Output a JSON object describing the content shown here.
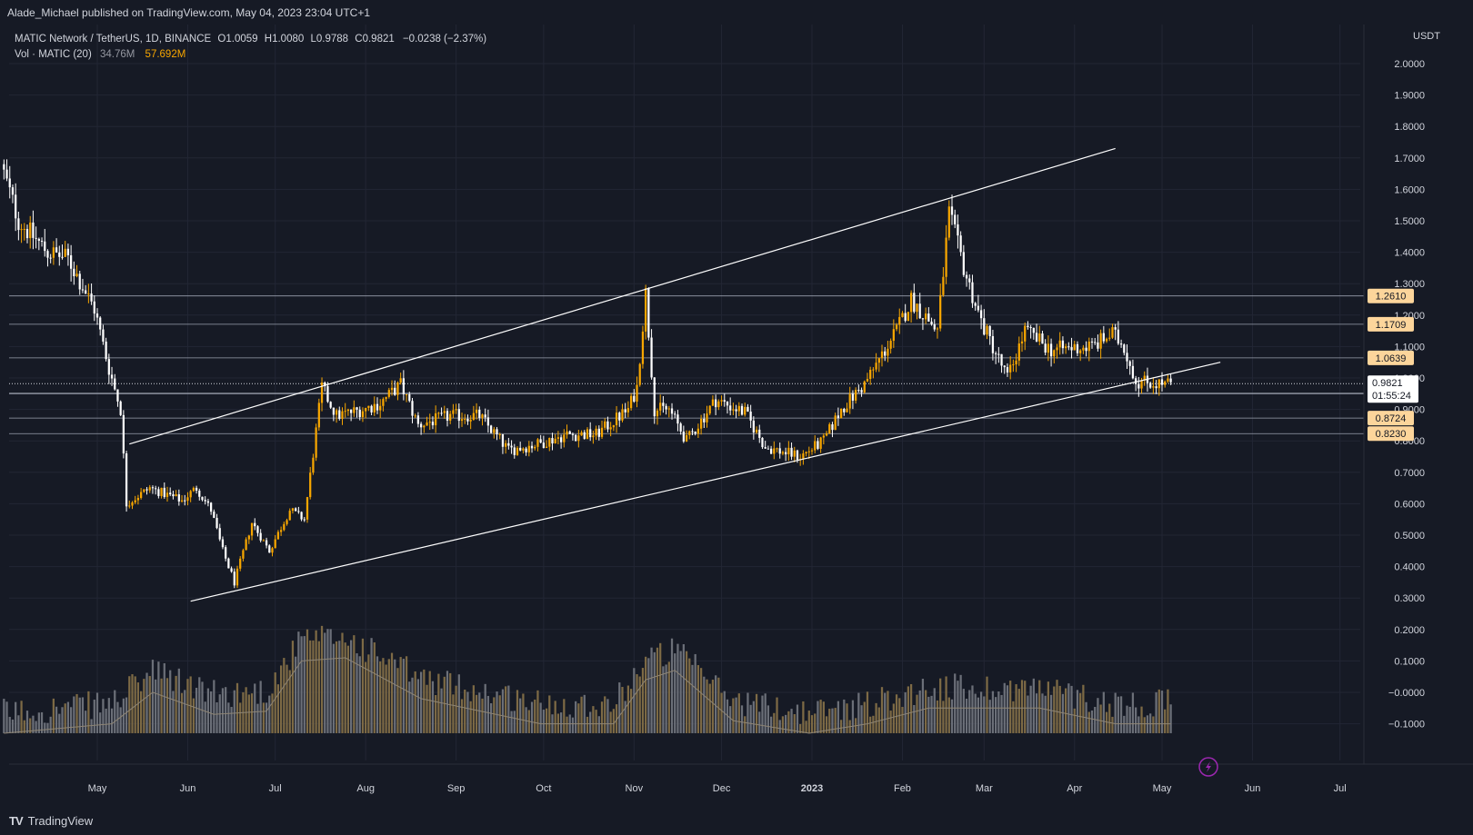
{
  "header": {
    "published": "Alade_Michael published on TradingView.com, May 04, 2023 23:04 UTC+1"
  },
  "legend": {
    "symbol": "MATIC Network / TetherUS, 1D, BINANCE",
    "open_label": "O",
    "open": "1.0059",
    "high_label": "H",
    "high": "1.0080",
    "low_label": "L",
    "low": "0.9788",
    "close_label": "C",
    "close": "0.9821",
    "change": "−0.0238 (−2.37%)",
    "vol_label": "Vol · MATIC (20)",
    "vol_value": "34.76M",
    "vol_ma": "57.692M"
  },
  "footer": {
    "brand": "TradingView",
    "logo": "TV"
  },
  "colors": {
    "background": "#161a25",
    "up_candle": "#f7a600",
    "down_candle": "#ffffff",
    "level_tag": "#fcd59b",
    "text": "#d1d4dc"
  },
  "icons": {
    "lightning": "lightning-icon"
  },
  "chart_data": {
    "type": "candlestick",
    "symbol": "MATIC/USDT",
    "interval": "1D",
    "x_ticks": [
      "May",
      "Jun",
      "Jul",
      "Aug",
      "Sep",
      "Oct",
      "Nov",
      "Dec",
      "2023",
      "Feb",
      "Mar",
      "Apr",
      "May",
      "Jun",
      "Jul"
    ],
    "y_unit": "USDT",
    "y_ticks": [
      "2.0000",
      "1.9000",
      "1.8000",
      "1.7000",
      "1.6000",
      "1.5000",
      "1.4000",
      "1.3000",
      "1.2000",
      "1.1000",
      "1.0000",
      "0.9000",
      "0.8000",
      "0.7000",
      "0.6000",
      "0.5000",
      "0.4000",
      "0.3000",
      "0.2000",
      "0.1000",
      "−0.0000",
      "−0.1000"
    ],
    "ylim": [
      -0.13,
      2.04
    ],
    "last_price": {
      "value": 0.9821,
      "price_label": "0.9821",
      "countdown": "01:55:24"
    },
    "horizontal_levels": [
      {
        "value": 1.261,
        "label": "1.2610"
      },
      {
        "value": 1.1709,
        "label": "1.1709"
      },
      {
        "value": 1.0639,
        "label": "1.0639"
      },
      {
        "value": 0.9515,
        "label": "0.9515"
      },
      {
        "value": 0.8724,
        "label": "0.8724"
      },
      {
        "value": 0.823,
        "label": "0.8230"
      }
    ],
    "extra_levels": [
      0.95
    ],
    "channel": {
      "upper": [
        {
          "date": "2022-05-12",
          "price": 0.79
        },
        {
          "date": "2023-04-15",
          "price": 1.73
        }
      ],
      "lower": [
        {
          "date": "2022-06-02",
          "price": 0.29
        },
        {
          "date": "2023-05-21",
          "price": 1.05
        }
      ]
    },
    "price_path": [
      [
        "2022-03-30",
        1.68
      ],
      [
        "2022-04-05",
        1.5
      ],
      [
        "2022-04-15",
        1.4
      ],
      [
        "2022-04-22",
        1.38
      ],
      [
        "2022-05-01",
        1.22
      ],
      [
        "2022-05-06",
        1.03
      ],
      [
        "2022-05-10",
        0.9
      ],
      [
        "2022-05-12",
        0.6
      ],
      [
        "2022-05-20",
        0.65
      ],
      [
        "2022-05-31",
        0.61
      ],
      [
        "2022-06-05",
        0.65
      ],
      [
        "2022-06-10",
        0.58
      ],
      [
        "2022-06-14",
        0.45
      ],
      [
        "2022-06-18",
        0.35
      ],
      [
        "2022-06-24",
        0.54
      ],
      [
        "2022-06-30",
        0.45
      ],
      [
        "2022-07-07",
        0.58
      ],
      [
        "2022-07-12",
        0.55
      ],
      [
        "2022-07-18",
        0.97
      ],
      [
        "2022-07-23",
        0.88
      ],
      [
        "2022-08-01",
        0.9
      ],
      [
        "2022-08-07",
        0.92
      ],
      [
        "2022-08-14",
        0.98
      ],
      [
        "2022-08-20",
        0.85
      ],
      [
        "2022-08-31",
        0.88
      ],
      [
        "2022-09-10",
        0.88
      ],
      [
        "2022-09-20",
        0.77
      ],
      [
        "2022-09-30",
        0.79
      ],
      [
        "2022-10-10",
        0.82
      ],
      [
        "2022-10-20",
        0.82
      ],
      [
        "2022-10-31",
        0.9
      ],
      [
        "2022-11-03",
        0.97
      ],
      [
        "2022-11-06",
        1.27
      ],
      [
        "2022-11-09",
        0.9
      ],
      [
        "2022-11-14",
        0.9
      ],
      [
        "2022-11-20",
        0.8
      ],
      [
        "2022-11-30",
        0.93
      ],
      [
        "2022-12-10",
        0.89
      ],
      [
        "2022-12-17",
        0.78
      ],
      [
        "2022-12-29",
        0.75
      ],
      [
        "2023-01-06",
        0.8
      ],
      [
        "2023-01-12",
        0.9
      ],
      [
        "2023-01-20",
        0.98
      ],
      [
        "2023-01-31",
        1.15
      ],
      [
        "2023-02-05",
        1.25
      ],
      [
        "2023-02-14",
        1.15
      ],
      [
        "2023-02-18",
        1.52
      ],
      [
        "2023-02-24",
        1.32
      ],
      [
        "2023-03-01",
        1.18
      ],
      [
        "2023-03-10",
        1.0
      ],
      [
        "2023-03-16",
        1.15
      ],
      [
        "2023-03-25",
        1.09
      ],
      [
        "2023-04-08",
        1.1
      ],
      [
        "2023-04-15",
        1.14
      ],
      [
        "2023-04-19",
        1.1
      ],
      [
        "2023-04-23",
        0.99
      ],
      [
        "2023-05-04",
        0.98
      ]
    ],
    "volume_path": [
      [
        "2022-03-30",
        -0.13
      ],
      [
        "2022-05-06",
        -0.1
      ],
      [
        "2022-05-20",
        0.0
      ],
      [
        "2022-06-10",
        -0.07
      ],
      [
        "2022-06-28",
        -0.06
      ],
      [
        "2022-07-10",
        0.1
      ],
      [
        "2022-07-25",
        0.11
      ],
      [
        "2022-08-20",
        -0.02
      ],
      [
        "2022-09-30",
        -0.1
      ],
      [
        "2022-10-25",
        -0.1
      ],
      [
        "2022-11-05",
        0.04
      ],
      [
        "2022-11-15",
        0.07
      ],
      [
        "2022-12-05",
        -0.09
      ],
      [
        "2022-12-31",
        -0.13
      ],
      [
        "2023-01-20",
        -0.1
      ],
      [
        "2023-02-10",
        -0.05
      ],
      [
        "2023-03-20",
        -0.05
      ],
      [
        "2023-04-15",
        -0.1
      ],
      [
        "2023-05-04",
        -0.1
      ]
    ]
  }
}
